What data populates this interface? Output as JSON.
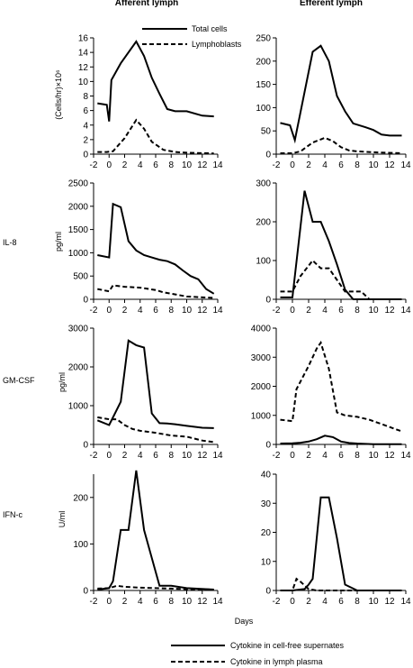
{
  "columns": [
    "Afferent lymph",
    "Efferent lymph"
  ],
  "row_labels": [
    "",
    "IL-8",
    "GM-CSF",
    "IFN-c"
  ],
  "xlabel": "Days",
  "top_legend": [
    "Total cells",
    "Lymphoblasts"
  ],
  "bottom_legend": [
    "Cytokine in cell-free supernates",
    "Cytokine in lymph plasma"
  ],
  "chart_data": [
    {
      "type": "line",
      "column": "Afferent lymph",
      "row_label": "",
      "ylabel": "(Cells/hr)×10⁶",
      "xlim": [
        -2,
        14
      ],
      "xticks": [
        -2,
        0,
        2,
        4,
        6,
        8,
        10,
        12,
        14
      ],
      "ylim": [
        0,
        16
      ],
      "yticks": [
        0,
        2,
        4,
        6,
        8,
        10,
        12,
        14,
        16
      ],
      "series": [
        {
          "name": "Total cells",
          "style": "solid",
          "x": [
            -1.5,
            -0.3,
            0,
            0.3,
            1.5,
            3.5,
            4.5,
            5.5,
            6.5,
            7.5,
            8.5,
            10,
            12,
            13.5
          ],
          "y": [
            7,
            6.8,
            4.5,
            10.2,
            12.5,
            15.5,
            13.5,
            10.5,
            8.3,
            6.2,
            5.9,
            5.9,
            5.3,
            5.2
          ]
        },
        {
          "name": "Lymphoblasts",
          "style": "dashed",
          "x": [
            -1.5,
            -0.3,
            0.5,
            2,
            3.5,
            4.5,
            5.5,
            7,
            8.5,
            10,
            13.5
          ],
          "y": [
            0.3,
            0.3,
            0.4,
            2.2,
            4.7,
            3.5,
            1.7,
            0.6,
            0.3,
            0.2,
            0.1
          ]
        }
      ]
    },
    {
      "type": "line",
      "column": "Efferent lymph",
      "row_label": "",
      "ylabel": "",
      "xlim": [
        -2,
        14
      ],
      "xticks": [
        -2,
        0,
        2,
        4,
        6,
        8,
        10,
        12,
        14
      ],
      "ylim": [
        0,
        250
      ],
      "yticks": [
        0,
        50,
        100,
        150,
        200,
        250
      ],
      "series": [
        {
          "name": "Total cells",
          "style": "solid",
          "x": [
            -1.5,
            -0.3,
            0.3,
            2.5,
            3.5,
            4.5,
            5.5,
            6.5,
            7.5,
            9,
            10,
            11,
            12,
            13.5
          ],
          "y": [
            67,
            62,
            30,
            220,
            233,
            200,
            125,
            92,
            66,
            58,
            52,
            42,
            40,
            40
          ]
        },
        {
          "name": "Lymphoblasts",
          "style": "dashed",
          "x": [
            -1.5,
            0,
            1,
            2.5,
            4,
            5,
            6,
            7,
            8,
            10,
            13.5
          ],
          "y": [
            2,
            2,
            6,
            25,
            35,
            28,
            15,
            8,
            6,
            4,
            2
          ]
        }
      ]
    },
    {
      "type": "line",
      "column": "Afferent lymph",
      "row_label": "IL-8",
      "ylabel": "pg/ml",
      "xlim": [
        -2,
        14
      ],
      "xticks": [
        -2,
        0,
        2,
        4,
        6,
        8,
        10,
        12,
        14
      ],
      "ylim": [
        0,
        2500
      ],
      "yticks": [
        0,
        500,
        1000,
        1500,
        2000,
        2500
      ],
      "series": [
        {
          "name": "Cytokine in cell-free supernates",
          "style": "solid",
          "x": [
            -1.5,
            0,
            0.5,
            1.5,
            2.5,
            3.5,
            4.5,
            5.5,
            6.5,
            7.5,
            8.5,
            9.5,
            10.5,
            11.5,
            12.5,
            13.5
          ],
          "y": [
            950,
            900,
            2050,
            1980,
            1250,
            1050,
            950,
            900,
            850,
            820,
            750,
            620,
            500,
            430,
            220,
            120
          ]
        },
        {
          "name": "Cytokine in lymph plasma",
          "style": "dashed",
          "x": [
            -1.5,
            0,
            0.5,
            2,
            4,
            6,
            7,
            8,
            10,
            13.5
          ],
          "y": [
            220,
            170,
            300,
            270,
            250,
            200,
            150,
            120,
            60,
            30
          ]
        }
      ]
    },
    {
      "type": "line",
      "column": "Efferent lymph",
      "row_label": "IL-8",
      "ylabel": "",
      "xlim": [
        -2,
        14
      ],
      "xticks": [
        -2,
        0,
        2,
        4,
        6,
        8,
        10,
        12,
        14
      ],
      "ylim": [
        0,
        300
      ],
      "yticks": [
        0,
        100,
        200,
        300
      ],
      "series": [
        {
          "name": "Cytokine in cell-free supernates",
          "style": "solid",
          "x": [
            -1.5,
            0,
            1.5,
            2.5,
            3.5,
            4.5,
            5.5,
            6.5,
            7.5,
            8.5,
            10,
            13.5
          ],
          "y": [
            5,
            5,
            280,
            200,
            200,
            150,
            90,
            25,
            0,
            0,
            0,
            0
          ]
        },
        {
          "name": "Cytokine in lymph plasma",
          "style": "dashed",
          "x": [
            -1.5,
            0,
            1,
            2.5,
            3.5,
            4.5,
            5.5,
            6.5,
            7,
            8.5,
            9.5
          ],
          "y": [
            20,
            20,
            60,
            100,
            80,
            80,
            50,
            20,
            20,
            20,
            0
          ]
        }
      ]
    },
    {
      "type": "line",
      "column": "Afferent lymph",
      "row_label": "GM-CSF",
      "ylabel": "pg/ml",
      "xlim": [
        -2,
        14
      ],
      "xticks": [
        -2,
        0,
        2,
        4,
        6,
        8,
        10,
        12,
        14
      ],
      "ylim": [
        0,
        3000
      ],
      "yticks": [
        0,
        1000,
        2000,
        3000
      ],
      "series": [
        {
          "name": "Cytokine in cell-free supernates",
          "style": "solid",
          "x": [
            -1.5,
            0,
            1.5,
            2.5,
            3.5,
            4.5,
            5.5,
            6.5,
            7.5,
            8.5,
            10,
            12,
            13.5
          ],
          "y": [
            620,
            500,
            1100,
            2680,
            2560,
            2500,
            800,
            550,
            540,
            520,
            480,
            430,
            420
          ]
        },
        {
          "name": "Cytokine in lymph plasma",
          "style": "dashed",
          "x": [
            -1.5,
            0,
            1,
            2,
            3,
            4,
            6,
            8,
            10,
            12,
            13.5
          ],
          "y": [
            700,
            650,
            650,
            500,
            400,
            350,
            300,
            230,
            200,
            100,
            60
          ]
        }
      ]
    },
    {
      "type": "line",
      "column": "Efferent lymph",
      "row_label": "GM-CSF",
      "ylabel": "",
      "xlim": [
        -2,
        14
      ],
      "xticks": [
        -2,
        0,
        2,
        4,
        6,
        8,
        10,
        12,
        14
      ],
      "ylim": [
        0,
        4000
      ],
      "yticks": [
        0,
        1000,
        2000,
        3000,
        4000
      ],
      "series": [
        {
          "name": "Cytokine in cell-free supernates",
          "style": "solid",
          "x": [
            -1.5,
            0,
            1,
            2,
            3,
            4,
            5,
            6,
            7,
            8,
            10,
            13.5
          ],
          "y": [
            30,
            40,
            60,
            100,
            180,
            300,
            250,
            100,
            50,
            30,
            10,
            10
          ]
        },
        {
          "name": "Cytokine in lymph plasma",
          "style": "dashed",
          "x": [
            -1.5,
            0,
            0.5,
            2,
            3,
            3.5,
            4.5,
            5.5,
            6.5,
            8,
            9.5,
            11,
            12.5,
            13.5
          ],
          "y": [
            850,
            800,
            1900,
            2700,
            3300,
            3500,
            2600,
            1100,
            1000,
            950,
            850,
            700,
            550,
            450
          ]
        }
      ]
    },
    {
      "type": "line",
      "column": "Afferent lymph",
      "row_label": "IFN-c",
      "ylabel": "U/ml",
      "xlim": [
        -2,
        14
      ],
      "xticks": [
        -2,
        0,
        2,
        4,
        6,
        8,
        10,
        12,
        14
      ],
      "ylim": [
        0,
        250
      ],
      "yticks": [
        0,
        100,
        200
      ],
      "series": [
        {
          "name": "Cytokine in cell-free supernates",
          "style": "solid",
          "x": [
            -1.5,
            0,
            0.5,
            1.5,
            2.5,
            3.5,
            4.5,
            5.5,
            6.5,
            8,
            10,
            13.5
          ],
          "y": [
            2,
            5,
            20,
            130,
            130,
            258,
            130,
            70,
            10,
            10,
            5,
            2
          ]
        },
        {
          "name": "Cytokine in lymph plasma",
          "style": "dashed",
          "x": [
            -1.5,
            0,
            1,
            2,
            4,
            6,
            8,
            10,
            13.5
          ],
          "y": [
            4,
            5,
            10,
            8,
            6,
            5,
            4,
            3,
            2
          ]
        }
      ]
    },
    {
      "type": "line",
      "column": "Efferent lymph",
      "row_label": "IFN-c",
      "ylabel": "",
      "xlim": [
        -2,
        14
      ],
      "xticks": [
        -2,
        0,
        2,
        4,
        6,
        8,
        10,
        12,
        14
      ],
      "ylim": [
        0,
        40
      ],
      "yticks": [
        0,
        10,
        20,
        30,
        40
      ],
      "series": [
        {
          "name": "Cytokine in cell-free supernates",
          "style": "solid",
          "x": [
            -1.5,
            0,
            1.5,
            2,
            2.5,
            3.5,
            4.5,
            5.5,
            6.5,
            8,
            10,
            13.5
          ],
          "y": [
            0,
            0,
            0.5,
            2,
            4,
            32,
            32,
            18,
            2,
            0,
            0,
            0
          ]
        },
        {
          "name": "Cytokine in lymph plasma",
          "style": "dashed",
          "x": [
            -1.5,
            0,
            0.5,
            1,
            2,
            3,
            4,
            6,
            8,
            10,
            13.5
          ],
          "y": [
            0,
            0,
            4,
            3,
            0.5,
            0,
            0,
            0,
            0,
            0,
            0
          ]
        }
      ]
    }
  ]
}
